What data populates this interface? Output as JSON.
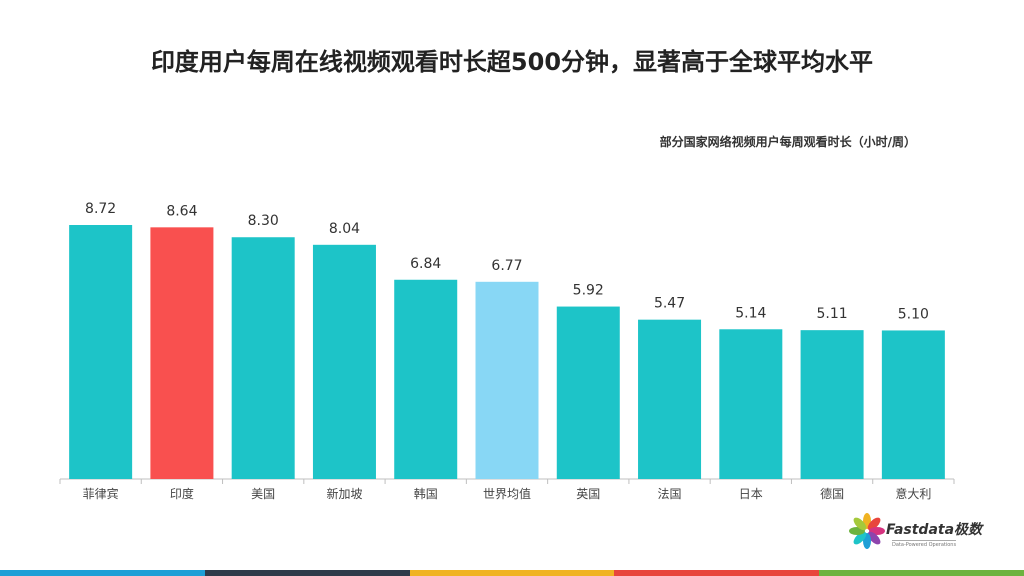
{
  "headline": "印度用户每周在线视频观看时长超500分钟，显著高于全球平均水平",
  "chart_data": {
    "type": "bar",
    "title": "部分国家网络视频用户每周观看时长（小时/周）",
    "categories": [
      "菲律宾",
      "印度",
      "美国",
      "新加坡",
      "韩国",
      "世界均值",
      "英国",
      "法国",
      "日本",
      "德国",
      "意大利"
    ],
    "value_labels": [
      "8.72",
      "8.64",
      "8.30",
      "8.04",
      "6.84",
      "6.77",
      "5.92",
      "5.47",
      "5.14",
      "5.11",
      "5.10"
    ],
    "values": [
      8.72,
      8.64,
      8.3,
      8.04,
      6.84,
      6.77,
      5.92,
      5.47,
      5.14,
      5.11,
      5.1
    ],
    "ylim": [
      0,
      8.72
    ],
    "grid": false,
    "colors": {
      "default": "#1dc4c8",
      "highlight": "#f9504f",
      "average": "#88d7f5",
      "axis": "#bfbfbf"
    },
    "bar_colors": [
      "default",
      "highlight",
      "default",
      "default",
      "default",
      "average",
      "default",
      "default",
      "default",
      "default",
      "default"
    ]
  },
  "logo": {
    "name": "Fastdata极数",
    "tagline": "Data-Powered Operations"
  },
  "footer_colors": [
    "#1e9fd6",
    "#2f3b4a",
    "#f0b323",
    "#e8453c",
    "#6db33f"
  ]
}
